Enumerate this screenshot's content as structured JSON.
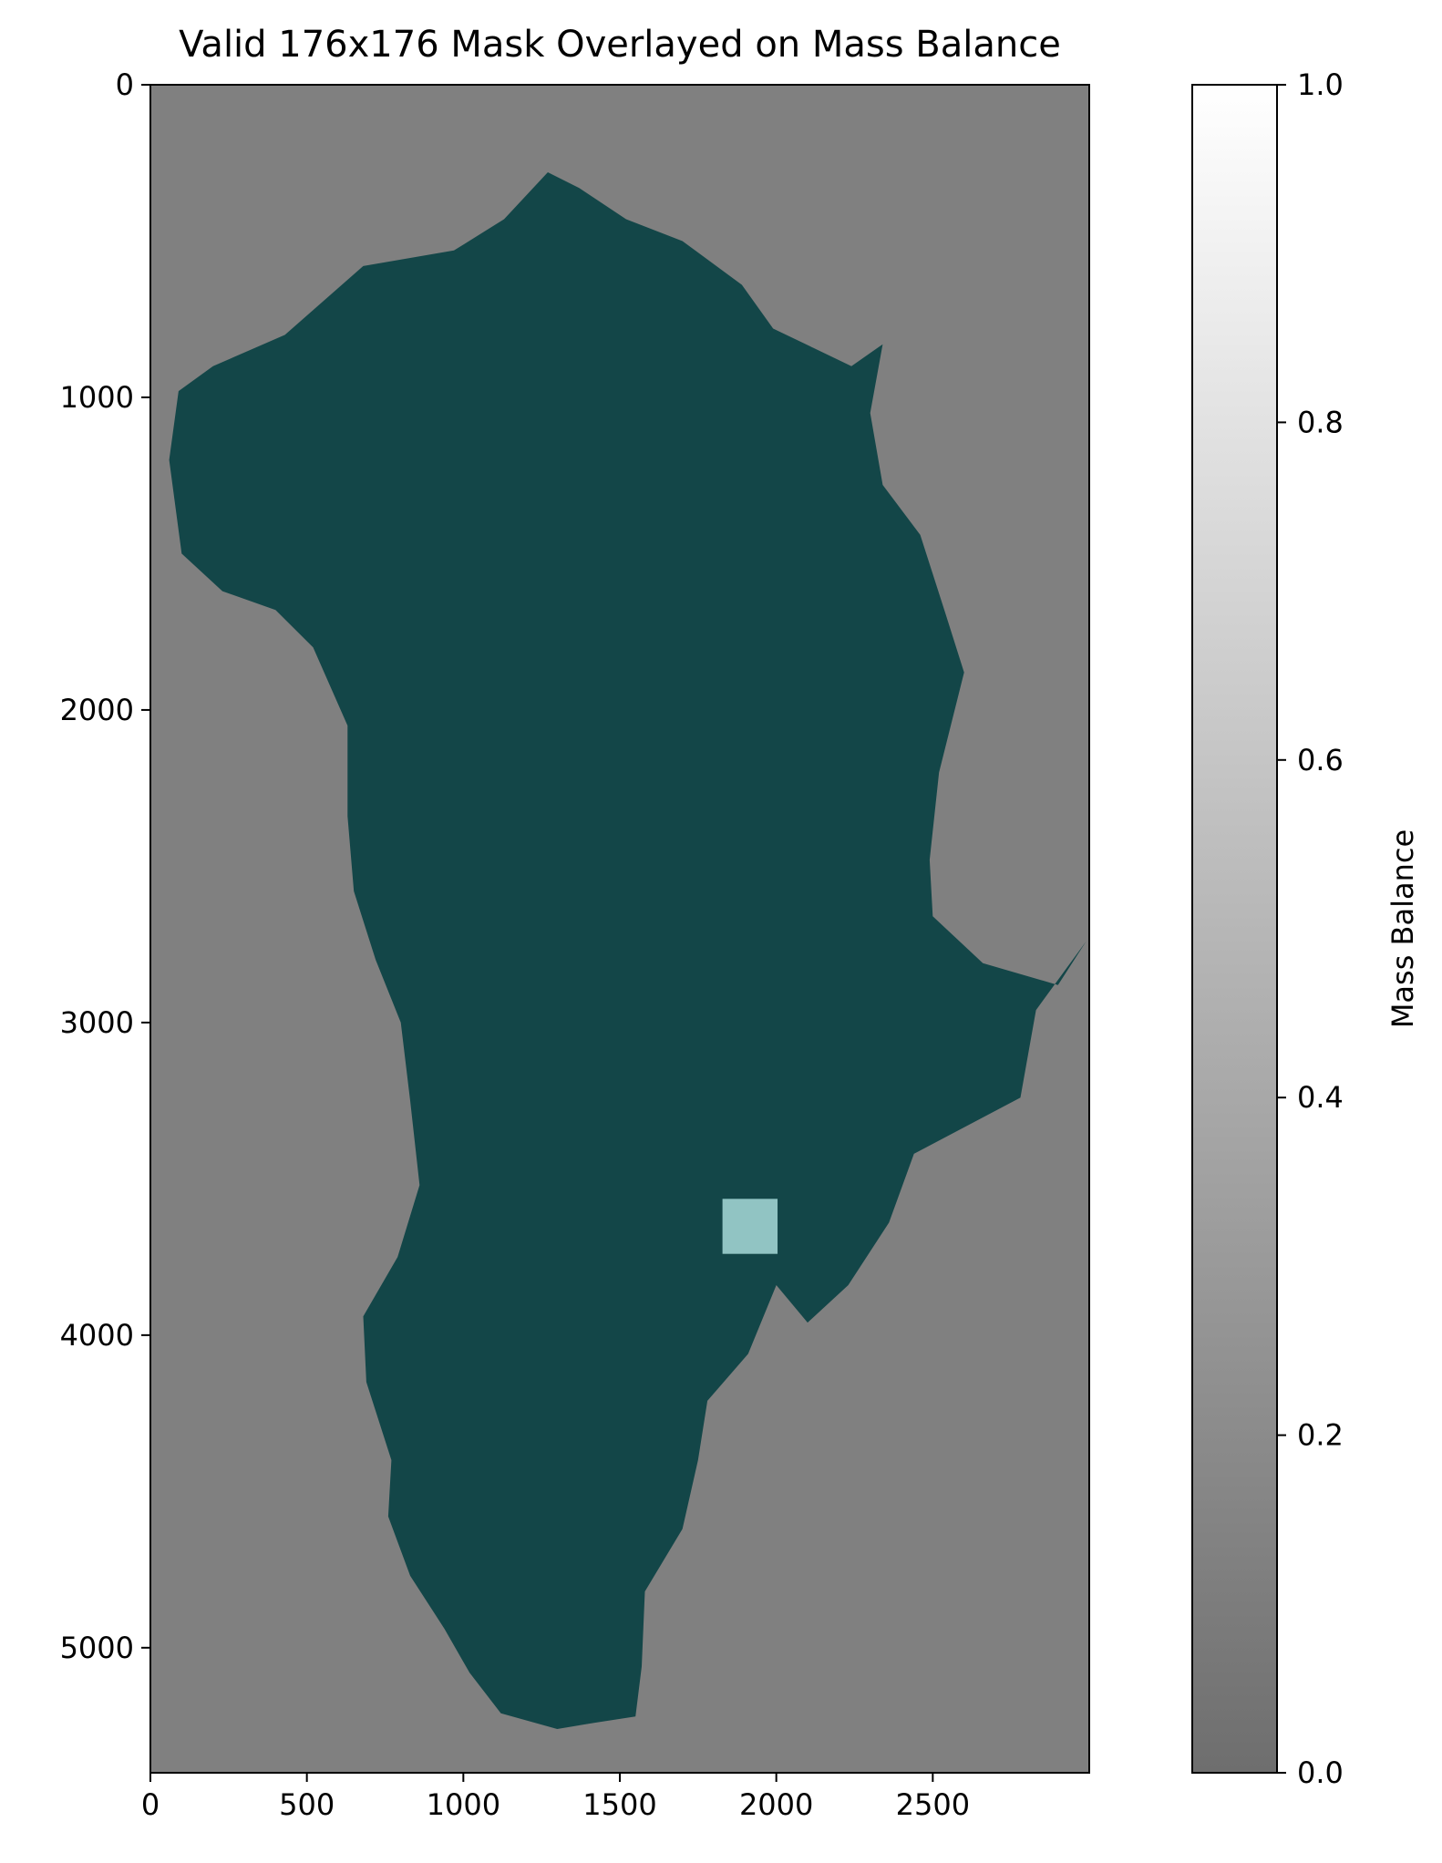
{
  "chart_data": {
    "type": "heatmap",
    "title": "Valid 176x176 Mask Overlayed on Mass Balance",
    "xlabel": "",
    "ylabel": "",
    "xlim": [
      0,
      3000
    ],
    "ylim": [
      5400,
      0
    ],
    "x_ticks": [
      0,
      500,
      1000,
      1500,
      2000,
      2500
    ],
    "y_ticks": [
      0,
      1000,
      2000,
      3000,
      4000,
      5000
    ],
    "x_tick_labels": [
      "0",
      "500",
      "1000",
      "1500",
      "2000",
      "2500"
    ],
    "y_tick_labels": [
      "0",
      "1000",
      "2000",
      "3000",
      "4000",
      "5000"
    ],
    "background_value": 0.2,
    "colors": {
      "background": "#808080",
      "ice_sheet": "#134648",
      "valid_mask": "#91c4c3"
    },
    "ice_sheet_outline": [
      [
        1270,
        280
      ],
      [
        1370,
        330
      ],
      [
        1520,
        430
      ],
      [
        1700,
        500
      ],
      [
        1890,
        640
      ],
      [
        1990,
        780
      ],
      [
        2240,
        900
      ],
      [
        2340,
        830
      ],
      [
        2300,
        1050
      ],
      [
        2340,
        1280
      ],
      [
        2460,
        1440
      ],
      [
        2540,
        1690
      ],
      [
        2600,
        1880
      ],
      [
        2520,
        2200
      ],
      [
        2490,
        2480
      ],
      [
        2500,
        2660
      ],
      [
        2660,
        2810
      ],
      [
        2900,
        2880
      ],
      [
        2990,
        2740
      ],
      [
        2830,
        2960
      ],
      [
        2780,
        3240
      ],
      [
        2440,
        3420
      ],
      [
        2360,
        3640
      ],
      [
        2230,
        3840
      ],
      [
        2100,
        3960
      ],
      [
        2000,
        3840
      ],
      [
        1910,
        4060
      ],
      [
        1780,
        4210
      ],
      [
        1750,
        4400
      ],
      [
        1700,
        4620
      ],
      [
        1580,
        4820
      ],
      [
        1570,
        5060
      ],
      [
        1550,
        5220
      ],
      [
        1420,
        5240
      ],
      [
        1300,
        5260
      ],
      [
        1120,
        5210
      ],
      [
        1020,
        5080
      ],
      [
        940,
        4940
      ],
      [
        830,
        4770
      ],
      [
        760,
        4580
      ],
      [
        770,
        4400
      ],
      [
        690,
        4150
      ],
      [
        680,
        3940
      ],
      [
        790,
        3750
      ],
      [
        860,
        3520
      ],
      [
        830,
        3250
      ],
      [
        800,
        3000
      ],
      [
        720,
        2800
      ],
      [
        650,
        2580
      ],
      [
        630,
        2340
      ],
      [
        630,
        2050
      ],
      [
        520,
        1800
      ],
      [
        400,
        1680
      ],
      [
        230,
        1620
      ],
      [
        100,
        1500
      ],
      [
        60,
        1200
      ],
      [
        90,
        980
      ],
      [
        200,
        900
      ],
      [
        430,
        800
      ],
      [
        680,
        580
      ],
      [
        970,
        530
      ],
      [
        1130,
        430
      ]
    ],
    "valid_mask": {
      "x": [
        1828,
        2004
      ],
      "y": [
        3564,
        3740
      ],
      "size": 176
    },
    "colorbar": {
      "label": "Mass Balance",
      "range": [
        0.0,
        1.0
      ],
      "ticks": [
        0.0,
        0.2,
        0.4,
        0.6,
        0.8,
        1.0
      ],
      "tick_labels": [
        "0.0",
        "0.2",
        "0.4",
        "0.6",
        "0.8",
        "1.0"
      ],
      "gradient": [
        "#6e6e6e",
        "#ffffff"
      ]
    }
  }
}
